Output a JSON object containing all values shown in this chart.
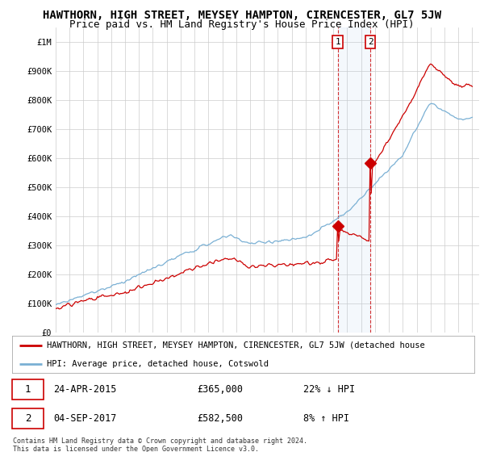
{
  "title": "HAWTHORN, HIGH STREET, MEYSEY HAMPTON, CIRENCESTER, GL7 5JW",
  "subtitle": "Price paid vs. HM Land Registry's House Price Index (HPI)",
  "ylabel_ticks": [
    "£0",
    "£100K",
    "£200K",
    "£300K",
    "£400K",
    "£500K",
    "£600K",
    "£700K",
    "£800K",
    "£900K",
    "£1M"
  ],
  "ytick_values": [
    0,
    100000,
    200000,
    300000,
    400000,
    500000,
    600000,
    700000,
    800000,
    900000,
    1000000
  ],
  "xlim_start": 1995.0,
  "xlim_end": 2025.5,
  "ylim": [
    0,
    1050000
  ],
  "hpi_color": "#7ab0d4",
  "price_color": "#cc0000",
  "marker1_x": 2015.31,
  "marker1_y": 365000,
  "marker2_x": 2017.67,
  "marker2_y": 582500,
  "legend_label1": "HAWTHORN, HIGH STREET, MEYSEY HAMPTON, CIRENCESTER, GL7 5JW (detached house",
  "legend_label2": "HPI: Average price, detached house, Cotswold",
  "footer": "Contains HM Land Registry data © Crown copyright and database right 2024.\nThis data is licensed under the Open Government Licence v3.0.",
  "background_color": "#ffffff",
  "grid_color": "#cccccc",
  "title_fontsize": 10,
  "subtitle_fontsize": 9
}
